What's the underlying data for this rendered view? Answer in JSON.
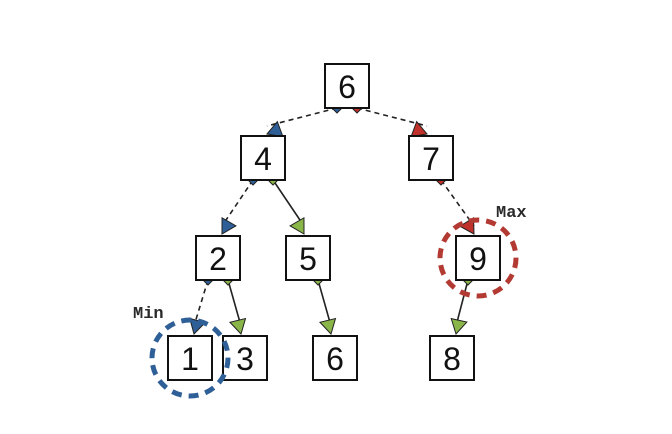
{
  "tree": {
    "nodes": [
      {
        "id": "n6root",
        "value": "6"
      },
      {
        "id": "n4",
        "value": "4"
      },
      {
        "id": "n7",
        "value": "7"
      },
      {
        "id": "n2",
        "value": "2"
      },
      {
        "id": "n5",
        "value": "5"
      },
      {
        "id": "n9",
        "value": "9"
      },
      {
        "id": "n1",
        "value": "1"
      },
      {
        "id": "n3",
        "value": "3"
      },
      {
        "id": "n6leaf",
        "value": "6"
      },
      {
        "id": "n8",
        "value": "8"
      }
    ],
    "edges": [
      {
        "from": "n6root",
        "to": "n4",
        "style": "dashed",
        "color": "blue"
      },
      {
        "from": "n6root",
        "to": "n7",
        "style": "dashed",
        "color": "red"
      },
      {
        "from": "n4",
        "to": "n2",
        "style": "dashed",
        "color": "blue"
      },
      {
        "from": "n4",
        "to": "n5",
        "style": "solid",
        "color": "green"
      },
      {
        "from": "n7",
        "to": "n9",
        "style": "dashed",
        "color": "red"
      },
      {
        "from": "n2",
        "to": "n1",
        "style": "dashed",
        "color": "blue"
      },
      {
        "from": "n2",
        "to": "n3",
        "style": "solid",
        "color": "green"
      },
      {
        "from": "n5",
        "to": "n6leaf",
        "style": "solid",
        "color": "green"
      },
      {
        "from": "n9",
        "to": "n8",
        "style": "solid",
        "color": "green"
      }
    ]
  },
  "labels": {
    "min": "Min",
    "max": "Max"
  },
  "colors": {
    "blue": "#2f5f97",
    "red": "#c0312b",
    "green": "#8ab548",
    "edge": "#222222",
    "box_border": "#111111",
    "min_circle": "#2f5f97",
    "max_circle": "#b33a32"
  }
}
